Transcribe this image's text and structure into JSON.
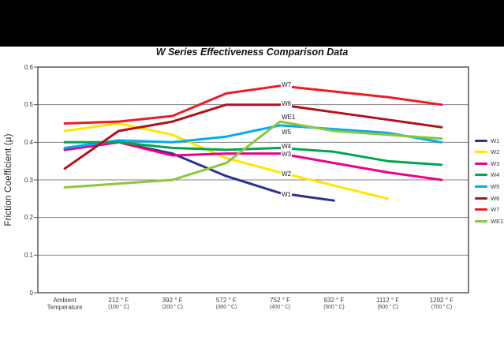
{
  "title": "W Series Effectiveness Comparison Data",
  "chart_data": {
    "type": "line",
    "title": "W Series Effectiveness Comparison Data",
    "xlabel": "",
    "ylabel": "Friction Coefficient (µ)",
    "ylim": [
      0,
      0.6
    ],
    "ytick_labels": [
      "0",
      "0.1",
      "0.2",
      "0.3",
      "0.4",
      "0.5",
      "0.6"
    ],
    "grid": true,
    "legend_position": "right-outside",
    "categories": [
      {
        "line1": "Ambient",
        "line2": "Temperature",
        "sub": ""
      },
      {
        "line1": "212 ° F",
        "line2": "",
        "sub": "(100 ° C)"
      },
      {
        "line1": "392 ° F",
        "line2": "",
        "sub": "(200 ° C)"
      },
      {
        "line1": "572 ° F",
        "line2": "",
        "sub": "(300 ° C)"
      },
      {
        "line1": "752 ° F",
        "line2": "",
        "sub": "(400 ° C)"
      },
      {
        "line1": "932 ° F",
        "line2": "",
        "sub": "(500 ° C)"
      },
      {
        "line1": "1112 ° F",
        "line2": "",
        "sub": "(600 ° C)"
      },
      {
        "line1": "1292 ° F",
        "line2": "",
        "sub": "(700 ° C)"
      }
    ],
    "series": [
      {
        "name": "W1",
        "color": "#2e3192",
        "values": [
          0.38,
          0.4,
          0.37,
          0.31,
          0.265,
          0.245,
          null,
          null
        ]
      },
      {
        "name": "W2",
        "color": "#ffe600",
        "values": [
          0.43,
          0.45,
          0.42,
          0.358,
          0.32,
          0.285,
          0.25,
          null
        ]
      },
      {
        "name": "W3",
        "color": "#ec008c",
        "values": [
          0.38,
          0.4,
          0.365,
          0.37,
          0.37,
          0.345,
          0.32,
          0.3
        ]
      },
      {
        "name": "W5",
        "color": "#00adee",
        "values": [
          0.385,
          0.405,
          0.4,
          0.415,
          0.445,
          0.435,
          0.425,
          0.4
        ]
      },
      {
        "name": "W4",
        "color": "#00a64f",
        "values": [
          0.4,
          0.4,
          0.385,
          0.38,
          0.385,
          0.375,
          0.35,
          0.34
        ]
      },
      {
        "name": "WE1",
        "color": "#8cc63e",
        "values": [
          0.28,
          0.29,
          0.3,
          0.345,
          0.455,
          0.43,
          0.42,
          0.41
        ]
      },
      {
        "name": "W6",
        "color": "#b1121b",
        "values": [
          0.33,
          0.43,
          0.455,
          0.5,
          0.5,
          0.48,
          0.46,
          0.44
        ]
      },
      {
        "name": "W7",
        "color": "#ec1c24",
        "values": [
          0.45,
          0.455,
          0.47,
          0.53,
          0.55,
          0.535,
          0.52,
          0.5
        ]
      }
    ],
    "legend_entries": [
      "W1",
      "W2",
      "W3",
      "W4",
      "W5",
      "W6",
      "W7",
      "WE1"
    ],
    "annotations": [
      {
        "text": "W7",
        "x_index": 4,
        "value": 0.553
      },
      {
        "text": "W6",
        "x_index": 4,
        "value": 0.502
      },
      {
        "text": "WE1",
        "x_index": 4,
        "value": 0.466
      },
      {
        "text": "W5",
        "x_index": 4,
        "value": 0.426
      },
      {
        "text": "W4",
        "x_index": 4,
        "value": 0.39
      },
      {
        "text": "W3",
        "x_index": 4,
        "value": 0.368
      },
      {
        "text": "W2",
        "x_index": 4,
        "value": 0.316
      },
      {
        "text": "W1",
        "x_index": 4,
        "value": 0.262
      }
    ]
  },
  "colors": {
    "grid": "#808080",
    "plot_border": "#4d4d4d",
    "top_band": "#000000"
  }
}
